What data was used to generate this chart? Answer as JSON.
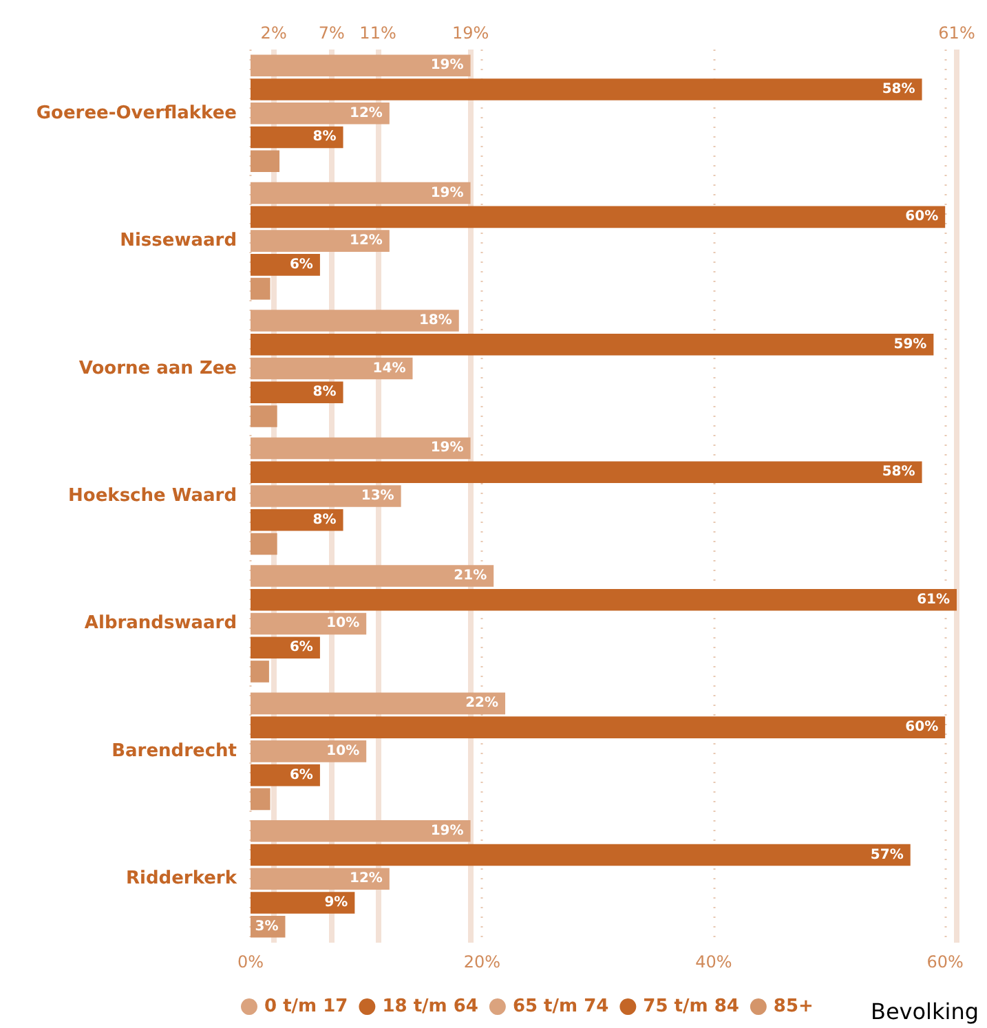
{
  "chart_data": {
    "type": "bar",
    "orientation": "horizontal",
    "categories": [
      "Goeree-Overflakkee",
      "Nissewaard",
      "Voorne aan Zee",
      "Hoeksche Waard",
      "Albrandswaard",
      "Barendrecht",
      "Ridderkerk"
    ],
    "series": [
      {
        "name": "0 t/m 17",
        "color": "#dba37e",
        "values": [
          19,
          19,
          18,
          19,
          21,
          22,
          19
        ],
        "value_labels": [
          "19%",
          "19%",
          "18%",
          "19%",
          "21%",
          "22%",
          "19%"
        ]
      },
      {
        "name": "18 t/m 64",
        "color": "#c46626",
        "values": [
          58,
          60,
          59,
          58,
          61,
          60,
          57
        ],
        "value_labels": [
          "58%",
          "60%",
          "59%",
          "58%",
          "61%",
          "60%",
          "57%"
        ]
      },
      {
        "name": "65 t/m 74",
        "color": "#dba37e",
        "values": [
          12,
          12,
          14,
          13,
          10,
          10,
          12
        ],
        "value_labels": [
          "12%",
          "12%",
          "14%",
          "13%",
          "10%",
          "10%",
          "12%"
        ]
      },
      {
        "name": "75 t/m 84",
        "color": "#c46626",
        "values": [
          8,
          6,
          8,
          8,
          6,
          6,
          9
        ],
        "value_labels": [
          "8%",
          "6%",
          "8%",
          "8%",
          "6%",
          "6%",
          "9%"
        ]
      },
      {
        "name": "85+",
        "color": "#d4956a",
        "values": [
          2.5,
          1.7,
          2.3,
          2.3,
          1.6,
          1.7,
          3
        ],
        "value_labels": [
          null,
          null,
          null,
          null,
          null,
          null,
          "3%"
        ]
      }
    ],
    "xlim": [
      0,
      61
    ],
    "xticks": [
      {
        "value": 0,
        "label": "0%"
      },
      {
        "value": 20,
        "label": "20%"
      },
      {
        "value": 40,
        "label": "40%"
      },
      {
        "value": 60,
        "label": "60%"
      }
    ],
    "ref_lines": [
      {
        "axis": "x",
        "value": 2,
        "label": "2%",
        "color": "#f3e1d6"
      },
      {
        "axis": "x",
        "value": 7,
        "label": "7%",
        "color": "#f3e1d6"
      },
      {
        "axis": "x",
        "value": 11,
        "label": "11%",
        "color": "#f3e1d6"
      },
      {
        "axis": "x",
        "value": 19,
        "label": "19%",
        "color": "#f3e1d6"
      },
      {
        "axis": "x",
        "value": 61,
        "label": "61%",
        "color": "#f3e1d6"
      }
    ],
    "grid": "x",
    "legend": "bottom",
    "marker": "circle",
    "annotations": [
      "Bevolking"
    ]
  }
}
